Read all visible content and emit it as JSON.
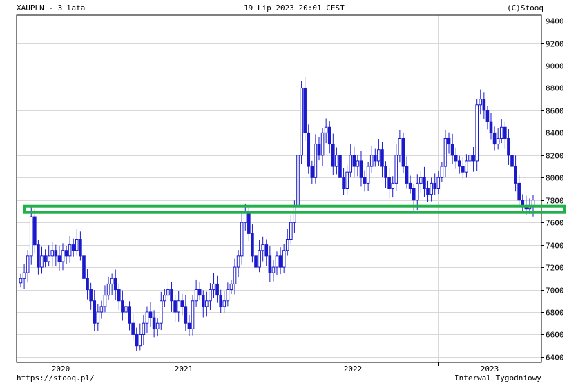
{
  "header": {
    "symbol": "XAUPLN - 3 lata",
    "timestamp": "19 Lip 2023 20:01 CEST",
    "copyright": "(C)Stooq"
  },
  "footer": {
    "url": "https://stooq.pl/",
    "interval": "Interwal Tygodniowy"
  },
  "colors": {
    "candle": "#1a1acc",
    "support_line": "#22b04a",
    "grid": "#d8d8d8"
  },
  "chart_data": {
    "type": "candlestick",
    "ylim": [
      6350,
      9450
    ],
    "yticks": [
      6400,
      6600,
      6800,
      7000,
      7200,
      7400,
      7600,
      7800,
      8000,
      8200,
      8400,
      8600,
      8800,
      9000,
      9200,
      9400
    ],
    "x_year_labels": [
      "2020",
      "2021",
      "2022",
      "2023"
    ],
    "grid": true,
    "support_level": 7720,
    "weekly_close": [
      7100,
      7150,
      7300,
      7650,
      7400,
      7200,
      7300,
      7250,
      7300,
      7350,
      7300,
      7250,
      7350,
      7300,
      7400,
      7350,
      7450,
      7300,
      7100,
      7000,
      6900,
      6700,
      6800,
      6850,
      6950,
      7050,
      7100,
      7000,
      6900,
      6800,
      6850,
      6700,
      6600,
      6500,
      6600,
      6700,
      6800,
      6750,
      6650,
      6700,
      6900,
      6950,
      7000,
      6900,
      6800,
      6900,
      6850,
      6700,
      6650,
      6900,
      7000,
      6950,
      6850,
      6900,
      7000,
      7050,
      6950,
      6850,
      6900,
      7000,
      7050,
      7200,
      7300,
      7600,
      7700,
      7500,
      7300,
      7200,
      7350,
      7400,
      7300,
      7150,
      7200,
      7300,
      7200,
      7350,
      7450,
      7600,
      7750,
      8200,
      8800,
      8400,
      8100,
      8000,
      8300,
      8200,
      8400,
      8450,
      8300,
      8100,
      8200,
      8000,
      7900,
      8050,
      8200,
      8100,
      8150,
      8000,
      7950,
      8100,
      8200,
      8150,
      8250,
      8100,
      8000,
      7900,
      7950,
      8200,
      8350,
      8100,
      7950,
      7900,
      7800,
      7950,
      8000,
      7900,
      7850,
      7950,
      7900,
      8000,
      8100,
      8350,
      8300,
      8200,
      8150,
      8100,
      8050,
      8150,
      8200,
      8150,
      8650,
      8700,
      8600,
      8500,
      8400,
      8300,
      8350,
      8450,
      8350,
      8200,
      8100,
      7950,
      7800,
      7750,
      7720,
      7750,
      7800
    ]
  }
}
